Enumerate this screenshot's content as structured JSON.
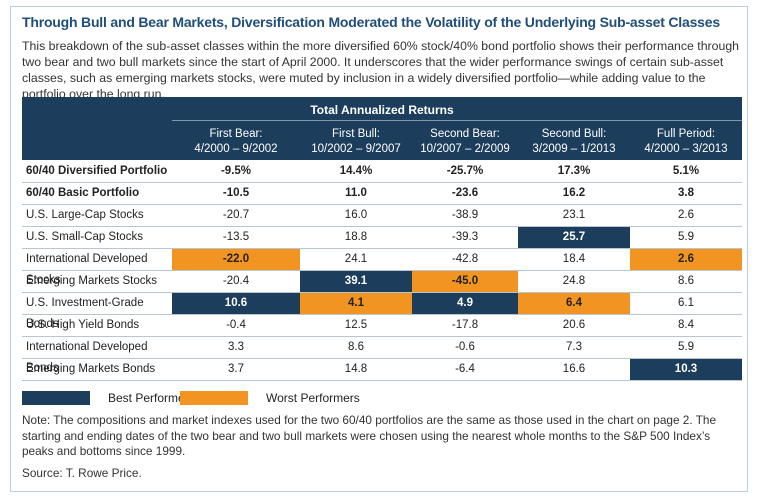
{
  "title": "Through Bull and Bear Markets, Diversification Moderated the Volatility of the Underlying Sub-asset Classes",
  "description": "This breakdown of the sub-asset classes within the more diversified 60% stock/40% bond portfolio shows their performance through two bear and two bull markets since the start of April 2000. It underscores that the wider performance swings of certain sub-asset classes, such as emerging markets stocks, were muted by inclusion in a widely diversified portfolio—while adding value to the portfolio over the long run.",
  "table": {
    "group_header": "Total Annualized Returns",
    "columns": [
      "First Bear:\n4/2000 – 9/2002",
      "First Bull:\n10/2002 – 9/2007",
      "Second Bear:\n10/2007 – 2/2009",
      "Second Bull:\n3/2009 – 1/2013",
      "Full Period:\n4/2000 – 3/2013"
    ],
    "rows": [
      {
        "label": "60/40 Diversified Portfolio",
        "bold": true,
        "values": [
          "-9.5%",
          "14.4%",
          "-25.7%",
          "17.3%",
          "5.1%"
        ],
        "colors": [
          null,
          null,
          null,
          null,
          null
        ]
      },
      {
        "label": "60/40 Basic Portfolio",
        "bold": true,
        "values": [
          "-10.5",
          "11.0",
          "-23.6",
          "16.2",
          "3.8"
        ],
        "colors": [
          null,
          null,
          null,
          null,
          null
        ]
      },
      {
        "label": "U.S. Large-Cap Stocks",
        "bold": false,
        "values": [
          "-20.7",
          "16.0",
          "-38.9",
          "23.1",
          "2.6"
        ],
        "colors": [
          null,
          null,
          null,
          null,
          null
        ]
      },
      {
        "label": "U.S. Small-Cap Stocks",
        "bold": false,
        "values": [
          "-13.5",
          "18.8",
          "-39.3",
          "25.7",
          "5.9"
        ],
        "colors": [
          null,
          null,
          null,
          "#1c3e5c",
          null
        ]
      },
      {
        "label": "International Developed Stocks",
        "bold": false,
        "values": [
          "-22.0",
          "24.1",
          "-42.8",
          "18.4",
          "2.6"
        ],
        "colors": [
          "#f29422",
          null,
          null,
          null,
          "#f29422"
        ]
      },
      {
        "label": "Emerging Markets Stocks",
        "bold": false,
        "values": [
          "-20.4",
          "39.1",
          "-45.0",
          "24.8",
          "8.6"
        ],
        "colors": [
          null,
          "#1c3e5c",
          "#f29422",
          null,
          null
        ]
      },
      {
        "label": "U.S. Investment-Grade Bonds",
        "bold": false,
        "values": [
          "10.6",
          "4.1",
          "4.9",
          "6.4",
          "6.1"
        ],
        "colors": [
          "#1c3e5c",
          "#f29422",
          "#1c3e5c",
          "#f29422",
          null
        ]
      },
      {
        "label": "U.S. High Yield Bonds",
        "bold": false,
        "values": [
          "-0.4",
          "12.5",
          "-17.8",
          "20.6",
          "8.4"
        ],
        "colors": [
          null,
          null,
          null,
          null,
          null
        ]
      },
      {
        "label": "International Developed Bonds",
        "bold": false,
        "values": [
          "3.3",
          "8.6",
          "-0.6",
          "7.3",
          "5.9"
        ],
        "colors": [
          null,
          null,
          null,
          null,
          null
        ]
      },
      {
        "label": "Emerging Markets Bonds",
        "bold": false,
        "values": [
          "3.7",
          "14.8",
          "-6.4",
          "16.6",
          "10.3"
        ],
        "colors": [
          null,
          null,
          null,
          null,
          "#1c3e5c"
        ]
      }
    ]
  },
  "legend": [
    {
      "label": "Best Performers",
      "color": "#1c3e5c"
    },
    {
      "label": "Worst Performers",
      "color": "#f29422"
    }
  ],
  "note": "Note: The compositions and market indexes used for the two 60/40 portfolios are the same as those used in the chart on page 2. The starting and ending dates of the two bear and two bull markets were chosen using the nearest whole months to the S&P 500 Index’s peaks and bottoms since 1999.",
  "source": "Source: T. Rowe Price."
}
